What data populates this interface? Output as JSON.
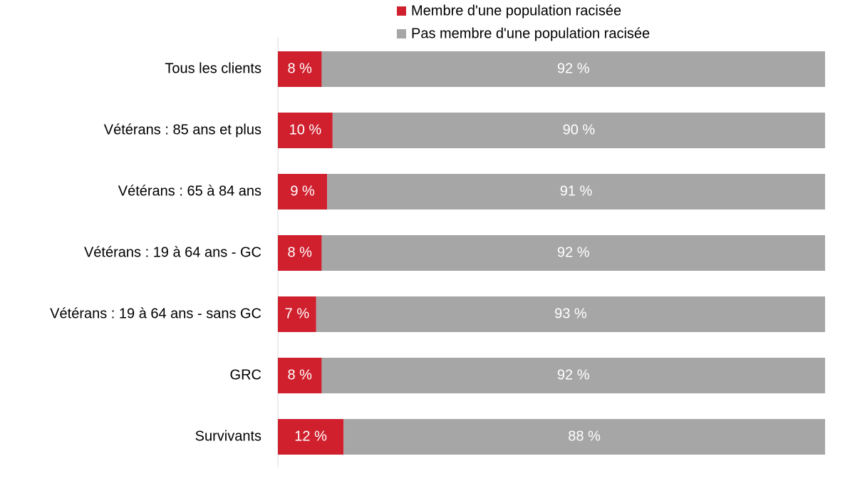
{
  "chart_data": {
    "type": "stacked-bar-horizontal",
    "categories": [
      "Tous les clients",
      "Vétérans : 85 ans et plus",
      "Vétérans : 65 à 84 ans",
      "Vétérans : 19 à 64 ans - GC",
      "Vétérans : 19 à 64 ans - sans GC",
      "GRC",
      "Survivants"
    ],
    "series": [
      {
        "name": "Membre d'une population racisée",
        "color": "#d0202e",
        "values": [
          8,
          10,
          9,
          8,
          7,
          8,
          12
        ],
        "value_labels": [
          "8 %",
          "10 %",
          "9 %",
          "8 %",
          "7 %",
          "8 %",
          "12 %"
        ]
      },
      {
        "name": "Pas membre d'une population racisée",
        "color": "#a6a6a6",
        "values": [
          92,
          90,
          91,
          92,
          93,
          92,
          88
        ],
        "value_labels": [
          "92 %",
          "90 %",
          "91 %",
          "92 %",
          "93 %",
          "92 %",
          "88 %"
        ]
      }
    ],
    "xlim": [
      0,
      100
    ]
  }
}
